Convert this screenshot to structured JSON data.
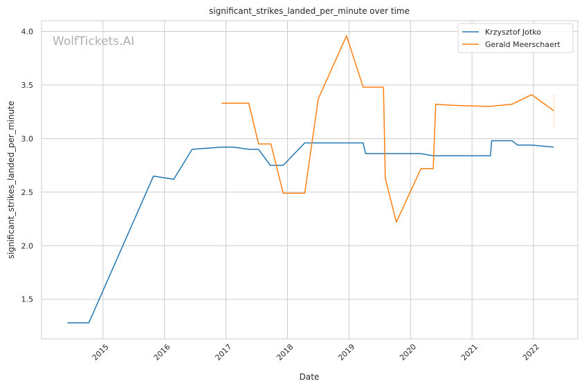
{
  "chart_data": {
    "type": "line",
    "title": "significant_strikes_landed_per_minute over time",
    "xlabel": "Date",
    "ylabel": "significant_strikes_landed_per_minute",
    "watermark": "WolfTickets.AI",
    "xlim": [
      2014.0,
      2022.72
    ],
    "ylim": [
      1.13,
      4.1
    ],
    "grid": true,
    "legend_position": "top-right",
    "x_ticks": [
      {
        "value": 2015,
        "label": "2015"
      },
      {
        "value": 2016,
        "label": "2016"
      },
      {
        "value": 2017,
        "label": "2017"
      },
      {
        "value": 2018,
        "label": "2018"
      },
      {
        "value": 2019,
        "label": "2019"
      },
      {
        "value": 2020,
        "label": "2020"
      },
      {
        "value": 2021,
        "label": "2021"
      },
      {
        "value": 2022,
        "label": "2022"
      }
    ],
    "y_ticks": [
      {
        "value": 1.5,
        "label": "1.5"
      },
      {
        "value": 2.0,
        "label": "2.0"
      },
      {
        "value": 2.5,
        "label": "2.5"
      },
      {
        "value": 3.0,
        "label": "3.0"
      },
      {
        "value": 3.5,
        "label": "3.5"
      },
      {
        "value": 4.0,
        "label": "4.0"
      }
    ],
    "series": [
      {
        "name": "Krzysztof Jotko",
        "color": "#1f77b4",
        "points": [
          [
            2014.42,
            1.28
          ],
          [
            2014.77,
            1.28
          ],
          [
            2015.82,
            2.65
          ],
          [
            2016.15,
            2.62
          ],
          [
            2016.45,
            2.9
          ],
          [
            2016.93,
            2.92
          ],
          [
            2017.12,
            2.92
          ],
          [
            2017.37,
            2.9
          ],
          [
            2017.53,
            2.9
          ],
          [
            2017.72,
            2.75
          ],
          [
            2017.93,
            2.75
          ],
          [
            2018.28,
            2.96
          ],
          [
            2019.23,
            2.96
          ],
          [
            2019.27,
            2.86
          ],
          [
            2020.17,
            2.86
          ],
          [
            2020.37,
            2.84
          ],
          [
            2021.3,
            2.84
          ],
          [
            2021.32,
            2.98
          ],
          [
            2021.65,
            2.98
          ],
          [
            2021.74,
            2.94
          ],
          [
            2021.97,
            2.94
          ],
          [
            2022.33,
            2.92
          ]
        ]
      },
      {
        "name": "Gerald Meerschaert",
        "color": "#ff7f0e",
        "points": [
          [
            2016.93,
            3.33
          ],
          [
            2017.37,
            3.33
          ],
          [
            2017.53,
            2.95
          ],
          [
            2017.73,
            2.95
          ],
          [
            2017.93,
            2.49
          ],
          [
            2018.28,
            2.49
          ],
          [
            2018.5,
            3.37
          ],
          [
            2018.96,
            3.96
          ],
          [
            2019.23,
            3.48
          ],
          [
            2019.56,
            3.48
          ],
          [
            2019.59,
            2.63
          ],
          [
            2019.77,
            2.22
          ],
          [
            2020.17,
            2.72
          ],
          [
            2020.37,
            2.72
          ],
          [
            2020.41,
            3.32
          ],
          [
            2020.72,
            3.31
          ],
          [
            2021.27,
            3.3
          ],
          [
            2021.65,
            3.32
          ],
          [
            2021.97,
            3.41
          ],
          [
            2022.33,
            3.26
          ]
        ],
        "error_bar": {
          "x": 2022.33,
          "low": 3.11,
          "high": 3.41
        }
      }
    ]
  }
}
